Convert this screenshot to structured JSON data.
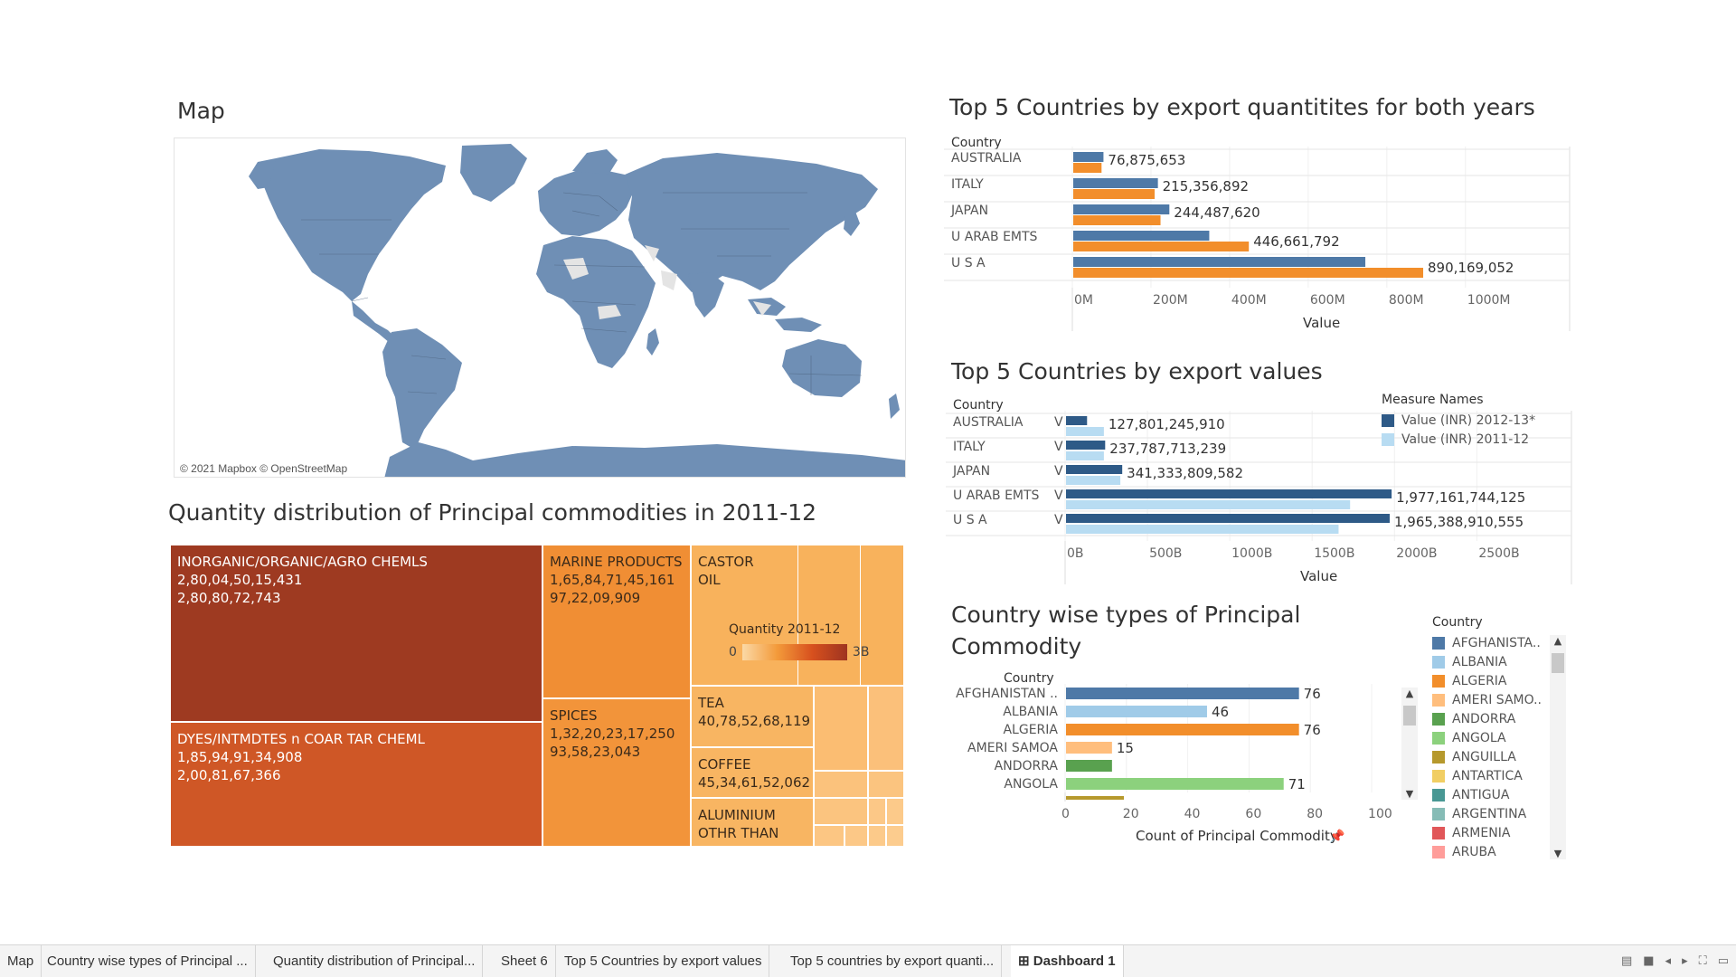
{
  "titles": {
    "map": "Map",
    "treemap": "Quantity distribution of Principal commodities in 2011-12",
    "quantities": "Top 5 Countries by export quantitites for both years",
    "values": "Top 5 Countries by export values",
    "commodity_line1": "Country wise types of Principal",
    "commodity_line2": "Commodity"
  },
  "map": {
    "credit": "© 2021 Mapbox © OpenStreetMap",
    "land_color": "#6f8fb5",
    "nodata_color": "#e4e4e4"
  },
  "treemap": {
    "legend_title": "Quantity 2011-12",
    "legend_min": "0",
    "legend_max": "3B",
    "cells": [
      {
        "name": "INORGANIC/ORGANIC/AGRO CHEMLS",
        "v1": "2,80,04,50,15,431",
        "v2": "2,80,80,72,743",
        "color": "#9e3a21",
        "text": "dark"
      },
      {
        "name": "DYES/INTMDTES n COAR TAR CHEML",
        "v1": "1,85,94,91,34,908",
        "v2": "2,00,81,67,366",
        "color": "#cf5726",
        "text": "dark"
      },
      {
        "name": "MARINE PRODUCTS",
        "v1": "1,65,84,71,45,161",
        "v2": "97,22,09,909",
        "color": "#f08e34",
        "text": "light"
      },
      {
        "name": "SPICES",
        "v1": "1,32,20,23,17,250",
        "v2": "93,58,23,043",
        "color": "#f2943a",
        "text": "light"
      },
      {
        "name": "CASTOR",
        "v1": "OIL",
        "v2": "",
        "color": "#f8b25c",
        "text": "light"
      },
      {
        "name": "TEA",
        "v1": "40,78,52,68,119",
        "v2": "",
        "color": "#f8b562",
        "text": "light"
      },
      {
        "name": "COFFEE",
        "v1": "45,34,61,52,062",
        "v2": "",
        "color": "#f8b562",
        "text": "light"
      },
      {
        "name": "ALUMINIUM",
        "v1": "OTHR THAN",
        "v2": "",
        "color": "#f8b562",
        "text": "light"
      }
    ]
  },
  "chart_quantities": {
    "header": "Country",
    "axis_label": "Value",
    "ticks": [
      "0M",
      "200M",
      "400M",
      "600M",
      "800M",
      "1000M"
    ],
    "rows": [
      {
        "country": "AUSTRALIA",
        "label": "76,875,653"
      },
      {
        "country": "ITALY",
        "label": "215,356,892"
      },
      {
        "country": "JAPAN",
        "label": "244,487,620"
      },
      {
        "country": "U ARAB EMTS",
        "label": "446,661,792"
      },
      {
        "country": "U S A",
        "label": "890,169,052"
      }
    ]
  },
  "chart_values": {
    "header": "Country",
    "axis_label": "Value",
    "ticks": [
      "0B",
      "500B",
      "1000B",
      "1500B",
      "2000B",
      "2500B"
    ],
    "legend_title": "Measure Names",
    "legend_items": [
      "Value (INR) 2012-13*",
      "Value (INR) 2011-12"
    ],
    "rows": [
      {
        "country": "AUSTRALIA",
        "label": "127,801,245,910"
      },
      {
        "country": "ITALY",
        "label": "237,787,713,239"
      },
      {
        "country": "JAPAN",
        "label": "341,333,809,582"
      },
      {
        "country": "U ARAB EMTS",
        "label": "1,977,161,744,125"
      },
      {
        "country": "U S A",
        "label": "1,965,388,910,555"
      }
    ]
  },
  "chart_commodity": {
    "header": "Country",
    "axis_label": "Count of Principal Commodity",
    "ticks": [
      "0",
      "20",
      "40",
      "60",
      "80",
      "100"
    ],
    "rows": [
      {
        "country": "AFGHANISTAN ..",
        "label": "76"
      },
      {
        "country": "ALBANIA",
        "label": "46"
      },
      {
        "country": "ALGERIA",
        "label": "76"
      },
      {
        "country": "AMERI SAMOA",
        "label": "15"
      },
      {
        "country": "ANDORRA",
        "label": ""
      },
      {
        "country": "ANGOLA",
        "label": "71"
      }
    ],
    "legend_title": "Country",
    "legend_items": [
      {
        "name": "AFGHANISTA..",
        "color": "#4e79a7"
      },
      {
        "name": "ALBANIA",
        "color": "#a0cbe8"
      },
      {
        "name": "ALGERIA",
        "color": "#f28e2b"
      },
      {
        "name": "AMERI SAMO..",
        "color": "#ffbe7d"
      },
      {
        "name": "ANDORRA",
        "color": "#59a14f"
      },
      {
        "name": "ANGOLA",
        "color": "#8cd17d"
      },
      {
        "name": "ANGUILLA",
        "color": "#b6992d"
      },
      {
        "name": "ANTARTICA",
        "color": "#f1ce63"
      },
      {
        "name": "ANTIGUA",
        "color": "#499894"
      },
      {
        "name": "ARGENTINA",
        "color": "#86bcb6"
      },
      {
        "name": "ARMENIA",
        "color": "#e15759"
      },
      {
        "name": "ARUBA",
        "color": "#ff9d9a"
      }
    ]
  },
  "chart_data": [
    {
      "type": "bar",
      "title": "Top 5 Countries by export quantitites for both years",
      "categories": [
        "AUSTRALIA",
        "ITALY",
        "JAPAN",
        "U ARAB EMTS",
        "U S A"
      ],
      "series": [
        {
          "color": "#4e79a7",
          "values": [
            76875653,
            215356892,
            244487620,
            346000000,
            743000000
          ]
        },
        {
          "color": "#f28e2b",
          "values": [
            72000000,
            207000000,
            222000000,
            446661792,
            890169052
          ]
        }
      ],
      "xlabel": "Value",
      "ylabel": "Country",
      "xlim": [
        0,
        1150000000
      ]
    },
    {
      "type": "bar",
      "title": "Top 5 Countries by export values",
      "categories": [
        "AUSTRALIA",
        "ITALY",
        "JAPAN",
        "U ARAB EMTS",
        "U S A"
      ],
      "series": [
        {
          "name": "Value (INR) 2012-13*",
          "color": "#2e5a87",
          "values": [
            127801245910,
            237787713239,
            341333809582,
            1977161744125,
            1965388910555
          ]
        },
        {
          "name": "Value (INR) 2011-12",
          "color": "#b8dcf2",
          "values": [
            230000000000,
            230000000000,
            330000000000,
            1725000000000,
            1655000000000
          ]
        }
      ],
      "xlabel": "Value",
      "ylabel": "Country",
      "xlim": [
        0,
        2800000000000
      ],
      "legend": "top-right"
    },
    {
      "type": "bar",
      "title": "Country wise types of Principal Commodity",
      "categories": [
        "AFGHANISTAN ..",
        "ALBANIA",
        "ALGERIA",
        "AMERI SAMOA",
        "ANDORRA",
        "ANGOLA"
      ],
      "values": [
        76,
        46,
        76,
        15,
        15,
        71
      ],
      "colors": [
        "#4e79a7",
        "#a0cbe8",
        "#f28e2b",
        "#ffbe7d",
        "#59a14f",
        "#8cd17d"
      ],
      "xlabel": "Count of Principal Commodity",
      "ylabel": "Country",
      "xlim": [
        0,
        105
      ]
    }
  ],
  "tabs": [
    {
      "label": "Map",
      "active": false
    },
    {
      "label": "Country wise types of Principal ...",
      "active": false
    },
    {
      "label": "Quantity distribution of Principal...",
      "active": false
    },
    {
      "label": "Sheet 6",
      "active": false
    },
    {
      "label": "Top 5 Countries by export values",
      "active": false
    },
    {
      "label": "Top 5 countries by export quanti...",
      "active": false
    },
    {
      "label": "Dashboard 1",
      "active": true
    }
  ]
}
